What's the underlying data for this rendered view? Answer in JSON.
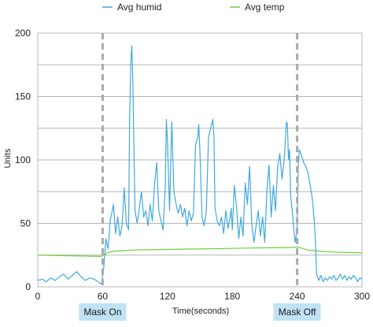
{
  "chart_data": {
    "type": "line",
    "title": "",
    "xlabel": "Time(seconds)",
    "ylabel": "Units",
    "xlim": [
      0,
      300
    ],
    "ylim": [
      0,
      200
    ],
    "x_ticks": [
      0,
      60,
      120,
      180,
      240,
      300
    ],
    "y_ticks": [
      0,
      50,
      100,
      150,
      200
    ],
    "grid": true,
    "legend_position": "top",
    "series": [
      {
        "name": "Avg humid",
        "color": "#3fa9e0",
        "points": [
          [
            0,
            5
          ],
          [
            4,
            6
          ],
          [
            8,
            4
          ],
          [
            12,
            7
          ],
          [
            16,
            5
          ],
          [
            20,
            8
          ],
          [
            24,
            10
          ],
          [
            28,
            6
          ],
          [
            32,
            9
          ],
          [
            36,
            12
          ],
          [
            40,
            8
          ],
          [
            44,
            5
          ],
          [
            48,
            7
          ],
          [
            52,
            6
          ],
          [
            56,
            4
          ],
          [
            59,
            2
          ],
          [
            61,
            15
          ],
          [
            63,
            38
          ],
          [
            65,
            30
          ],
          [
            67,
            52
          ],
          [
            69,
            60
          ],
          [
            70,
            65
          ],
          [
            72,
            42
          ],
          [
            74,
            55
          ],
          [
            76,
            40
          ],
          [
            78,
            48
          ],
          [
            80,
            78
          ],
          [
            82,
            50
          ],
          [
            84,
            45
          ],
          [
            85,
            130
          ],
          [
            86,
            175
          ],
          [
            87,
            190
          ],
          [
            88,
            160
          ],
          [
            89,
            108
          ],
          [
            90,
            60
          ],
          [
            92,
            50
          ],
          [
            94,
            62
          ],
          [
            96,
            75
          ],
          [
            98,
            55
          ],
          [
            100,
            60
          ],
          [
            102,
            48
          ],
          [
            104,
            65
          ],
          [
            106,
            52
          ],
          [
            108,
            80
          ],
          [
            110,
            98
          ],
          [
            112,
            60
          ],
          [
            114,
            52
          ],
          [
            116,
            45
          ],
          [
            118,
            80
          ],
          [
            119,
            132
          ],
          [
            120,
            115
          ],
          [
            122,
            60
          ],
          [
            124,
            130
          ],
          [
            126,
            75
          ],
          [
            128,
            65
          ],
          [
            130,
            58
          ],
          [
            132,
            65
          ],
          [
            134,
            55
          ],
          [
            136,
            62
          ],
          [
            138,
            48
          ],
          [
            140,
            60
          ],
          [
            142,
            52
          ],
          [
            144,
            58
          ],
          [
            146,
            112
          ],
          [
            148,
            118
          ],
          [
            149,
            128
          ],
          [
            150,
            108
          ],
          [
            152,
            55
          ],
          [
            154,
            48
          ],
          [
            156,
            60
          ],
          [
            158,
            118
          ],
          [
            160,
            125
          ],
          [
            162,
            132
          ],
          [
            163,
            118
          ],
          [
            164,
            62
          ],
          [
            166,
            52
          ],
          [
            168,
            48
          ],
          [
            170,
            55
          ],
          [
            172,
            42
          ],
          [
            174,
            60
          ],
          [
            176,
            46
          ],
          [
            178,
            55
          ],
          [
            179,
            62
          ],
          [
            180,
            45
          ],
          [
            182,
            80
          ],
          [
            184,
            62
          ],
          [
            186,
            38
          ],
          [
            188,
            55
          ],
          [
            190,
            40
          ],
          [
            192,
            82
          ],
          [
            194,
            65
          ],
          [
            196,
            95
          ],
          [
            198,
            50
          ],
          [
            200,
            35
          ],
          [
            202,
            48
          ],
          [
            204,
            60
          ],
          [
            206,
            40
          ],
          [
            208,
            55
          ],
          [
            210,
            35
          ],
          [
            212,
            75
          ],
          [
            214,
            96
          ],
          [
            216,
            55
          ],
          [
            218,
            80
          ],
          [
            220,
            60
          ],
          [
            222,
            95
          ],
          [
            224,
            105
          ],
          [
            226,
            85
          ],
          [
            228,
            100
          ],
          [
            230,
            130
          ],
          [
            231,
            128
          ],
          [
            232,
            100
          ],
          [
            233,
            108
          ],
          [
            234,
            72
          ],
          [
            236,
            55
          ],
          [
            238,
            35
          ],
          [
            240,
            45
          ],
          [
            241,
            95
          ],
          [
            242,
            108
          ],
          [
            244,
            104
          ],
          [
            246,
            98
          ],
          [
            248,
            95
          ],
          [
            250,
            90
          ],
          [
            252,
            80
          ],
          [
            254,
            70
          ],
          [
            256,
            50
          ],
          [
            257,
            35
          ],
          [
            258,
            10
          ],
          [
            260,
            5
          ],
          [
            262,
            9
          ],
          [
            264,
            4
          ],
          [
            266,
            7
          ],
          [
            268,
            5
          ],
          [
            270,
            8
          ],
          [
            272,
            6
          ],
          [
            274,
            9
          ],
          [
            276,
            5
          ],
          [
            278,
            7
          ],
          [
            280,
            10
          ],
          [
            282,
            6
          ],
          [
            284,
            9
          ],
          [
            286,
            5
          ],
          [
            288,
            8
          ],
          [
            290,
            6
          ],
          [
            292,
            9
          ],
          [
            294,
            7
          ],
          [
            296,
            4
          ],
          [
            298,
            7
          ],
          [
            300,
            6
          ]
        ]
      },
      {
        "name": "Avg temp",
        "color": "#6ccf3f",
        "points": [
          [
            0,
            25
          ],
          [
            20,
            24.6
          ],
          [
            40,
            24.3
          ],
          [
            59,
            24
          ],
          [
            61,
            25
          ],
          [
            65,
            27
          ],
          [
            70,
            28
          ],
          [
            80,
            28.5
          ],
          [
            90,
            29
          ],
          [
            100,
            29.2
          ],
          [
            120,
            29.5
          ],
          [
            140,
            29.8
          ],
          [
            160,
            30
          ],
          [
            180,
            30.3
          ],
          [
            200,
            30.6
          ],
          [
            220,
            30.8
          ],
          [
            235,
            31
          ],
          [
            240,
            31.5
          ],
          [
            244,
            30.5
          ],
          [
            250,
            29
          ],
          [
            256,
            28.5
          ],
          [
            262,
            28
          ],
          [
            270,
            27.5
          ],
          [
            280,
            27.2
          ],
          [
            290,
            27
          ],
          [
            300,
            26.8
          ]
        ]
      }
    ],
    "annotations": [
      {
        "x": 60,
        "label": "Mask On",
        "style": "dashed-vertical"
      },
      {
        "x": 240,
        "label": "Mask Off",
        "style": "dashed-vertical"
      }
    ]
  }
}
